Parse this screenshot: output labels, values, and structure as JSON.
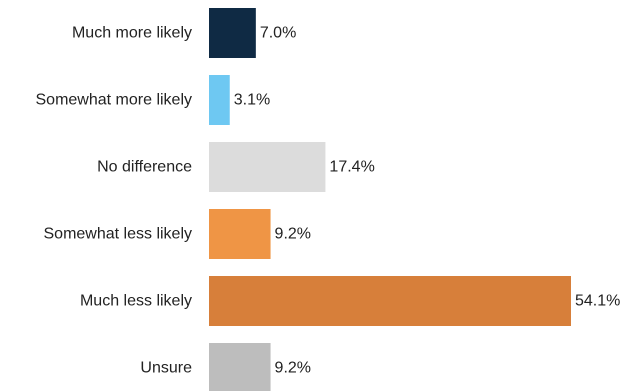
{
  "chart_data": {
    "type": "bar",
    "orientation": "horizontal",
    "categories": [
      "Much more likely",
      "Somewhat more likely",
      "No difference",
      "Somewhat less likely",
      "Much less likely",
      "Unsure"
    ],
    "values": [
      7.0,
      3.1,
      17.4,
      9.2,
      54.1,
      9.2
    ],
    "value_labels": [
      "7.0%",
      "3.1%",
      "17.4%",
      "9.2%",
      "54.1%",
      "9.2%"
    ],
    "colors": [
      "#0f2a44",
      "#6ec8f2",
      "#dcdcdc",
      "#ef9545",
      "#d77f3a",
      "#bdbdbd"
    ],
    "title": "",
    "xlabel": "",
    "ylabel": "",
    "xlim": [
      0,
      54.1
    ],
    "grid": false,
    "legend": "none"
  }
}
